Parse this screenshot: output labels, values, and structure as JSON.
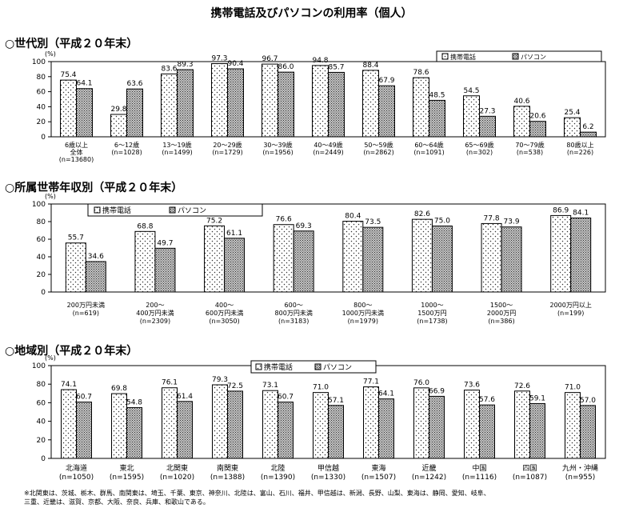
{
  "title": "携帯電話及びパソコンの利用率（個人）",
  "sections": [
    {
      "title": "○世代別（平成２０年末）"
    },
    {
      "title": "○所属世帯年収別（平成２０年末）"
    },
    {
      "title": "○地域別（平成２０年末）"
    }
  ],
  "footnote_lines": [
    "※北関東は、茨城、栃木、群馬、南関東は、埼玉、千葉、東京、神奈川、北陸は、富山、石川、福井、甲信越は、新潟、長野、山梨、東海は、静岡、愛知、岐阜、",
    "三重、近畿は、滋賀、京都、大阪、奈良、兵庫、和歌山である。"
  ],
  "chart_data": [
    {
      "type": "bar",
      "title": "○世代別（平成２０年末）",
      "ylabel": "(%)",
      "ylim": [
        0,
        100
      ],
      "yticks": [
        0,
        20,
        40,
        60,
        80,
        100
      ],
      "legend_position": "top-right",
      "categories": [
        [
          "6歳以上",
          "全体",
          "(n=13680)"
        ],
        [
          "6～12歳",
          "(n=1028)"
        ],
        [
          "13～19歳",
          "(n=1499)"
        ],
        [
          "20～29歳",
          "(n=1729)"
        ],
        [
          "30～39歳",
          "(n=1956)"
        ],
        [
          "40～49歳",
          "(n=2449)"
        ],
        [
          "50～59歳",
          "(n=2862)"
        ],
        [
          "60～64歳",
          "(n=1091)"
        ],
        [
          "65～69歳",
          "(n=302)"
        ],
        [
          "70～79歳",
          "(n=538)"
        ],
        [
          "80歳以上",
          "(n=226)"
        ]
      ],
      "series": [
        {
          "name": "携帯電話",
          "values": [
            75.4,
            29.8,
            83.6,
            97.3,
            96.7,
            94.8,
            88.4,
            78.6,
            54.5,
            40.6,
            25.4
          ]
        },
        {
          "name": "パソコン",
          "values": [
            64.1,
            63.6,
            89.3,
            90.4,
            86.0,
            85.7,
            67.9,
            48.5,
            27.3,
            20.6,
            6.2
          ]
        }
      ]
    },
    {
      "type": "bar",
      "title": "○所属世帯年収別（平成２０年末）",
      "ylabel": "(%)",
      "ylim": [
        0,
        100
      ],
      "yticks": [
        0,
        20,
        40,
        60,
        80,
        100
      ],
      "legend_position": "top-left",
      "categories": [
        [
          "200万円未満",
          "(n=619)"
        ],
        [
          "200～",
          "400万円未満",
          "(n=2309)"
        ],
        [
          "400～",
          "600万円未満",
          "(n=3050)"
        ],
        [
          "600～",
          "800万円未満",
          "(n=3183)"
        ],
        [
          "800～",
          "1000万円未満",
          "(n=1979)"
        ],
        [
          "1000～",
          "1500万円",
          "(n=1738)"
        ],
        [
          "1500～",
          "2000万円",
          "(n=386)"
        ],
        [
          "2000万円以上",
          "(n=199)"
        ]
      ],
      "series": [
        {
          "name": "携帯電話",
          "values": [
            55.7,
            68.8,
            75.2,
            76.6,
            80.4,
            82.6,
            77.8,
            86.9
          ]
        },
        {
          "name": "パソコン",
          "values": [
            34.6,
            49.7,
            61.1,
            69.3,
            73.5,
            75.0,
            73.9,
            84.1
          ]
        }
      ]
    },
    {
      "type": "bar",
      "title": "○地域別（平成２０年末）",
      "ylabel": "(%)",
      "ylim": [
        0,
        100
      ],
      "yticks": [
        0,
        20,
        40,
        60,
        80,
        100
      ],
      "legend_position": "top-center",
      "categories": [
        [
          "北海道",
          "(n=1050)"
        ],
        [
          "東北",
          "(n=1595)"
        ],
        [
          "北関東",
          "(n=1020)"
        ],
        [
          "南関東",
          "(n=1388)"
        ],
        [
          "北陸",
          "(n=1390)"
        ],
        [
          "甲信越",
          "(n=1330)"
        ],
        [
          "東海",
          "(n=1507)"
        ],
        [
          "近畿",
          "(n=1242)"
        ],
        [
          "中国",
          "(n=1116)"
        ],
        [
          "四国",
          "(n=1087)"
        ],
        [
          "九州・沖縄",
          "(n=955)"
        ]
      ],
      "series": [
        {
          "name": "携帯電話",
          "values": [
            74.1,
            69.8,
            76.1,
            79.3,
            73.1,
            71.0,
            77.1,
            76.0,
            73.6,
            72.6,
            71.0
          ]
        },
        {
          "name": "パソコン",
          "values": [
            60.7,
            54.8,
            61.4,
            72.5,
            60.7,
            57.1,
            64.1,
            66.9,
            57.6,
            59.1,
            57.0
          ]
        }
      ]
    }
  ]
}
